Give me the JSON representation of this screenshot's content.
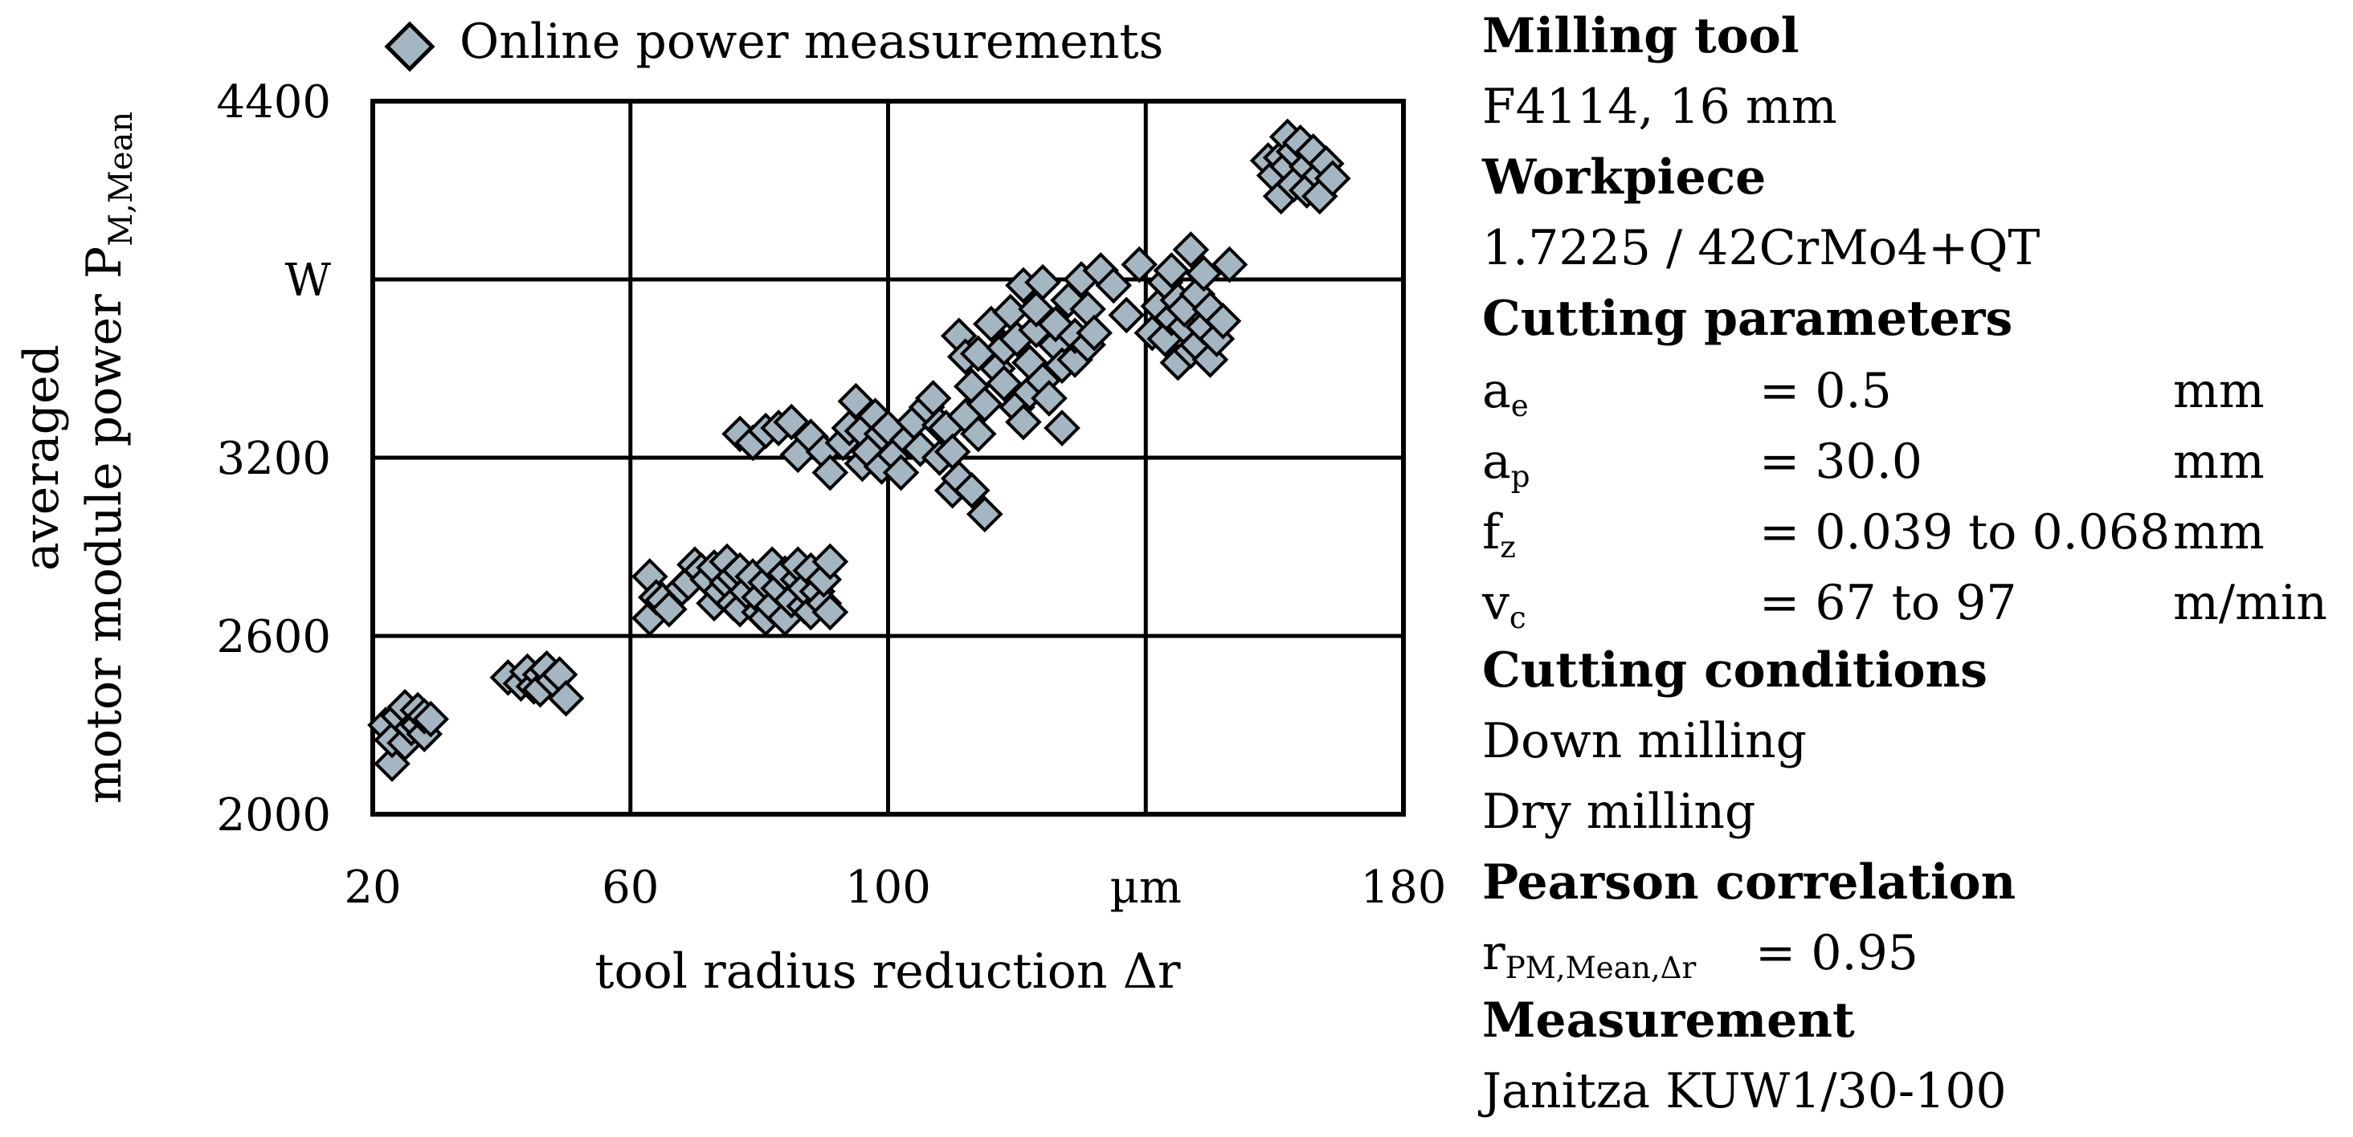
{
  "chart_data": {
    "type": "scatter",
    "series": [
      {
        "name": "Online power measurements",
        "marker": "diamond",
        "color": "#a4b6c1",
        "points": [
          [
            22,
            2300
          ],
          [
            23,
            2170
          ],
          [
            23,
            2250
          ],
          [
            24,
            2330
          ],
          [
            25,
            2240
          ],
          [
            25,
            2360
          ],
          [
            26,
            2290
          ],
          [
            27,
            2300
          ],
          [
            27,
            2350
          ],
          [
            28,
            2270
          ],
          [
            28,
            2330
          ],
          [
            29,
            2320
          ],
          [
            41,
            2460
          ],
          [
            43,
            2440
          ],
          [
            44,
            2480
          ],
          [
            45,
            2430
          ],
          [
            46,
            2470
          ],
          [
            46,
            2420
          ],
          [
            47,
            2490
          ],
          [
            48,
            2450
          ],
          [
            49,
            2470
          ],
          [
            50,
            2390
          ],
          [
            63,
            2800
          ],
          [
            63,
            2660
          ],
          [
            64,
            2730
          ],
          [
            65,
            2720
          ],
          [
            66,
            2690
          ],
          [
            68,
            2760
          ],
          [
            69,
            2780
          ],
          [
            70,
            2840
          ],
          [
            71,
            2820
          ],
          [
            72,
            2790
          ],
          [
            73,
            2710
          ],
          [
            73,
            2830
          ],
          [
            74,
            2750
          ],
          [
            75,
            2780
          ],
          [
            75,
            2850
          ],
          [
            76,
            2710
          ],
          [
            76,
            2800
          ],
          [
            77,
            2820
          ],
          [
            77,
            2690
          ],
          [
            78,
            2750
          ],
          [
            79,
            2800
          ],
          [
            80,
            2680
          ],
          [
            80,
            2730
          ],
          [
            81,
            2660
          ],
          [
            81,
            2780
          ],
          [
            82,
            2840
          ],
          [
            82,
            2700
          ],
          [
            83,
            2760
          ],
          [
            84,
            2810
          ],
          [
            84,
            2660
          ],
          [
            85,
            2720
          ],
          [
            86,
            2790
          ],
          [
            86,
            2840
          ],
          [
            87,
            2700
          ],
          [
            87,
            2760
          ],
          [
            88,
            2680
          ],
          [
            88,
            2820
          ],
          [
            89,
            2750
          ],
          [
            90,
            2710
          ],
          [
            90,
            2790
          ],
          [
            91,
            2850
          ],
          [
            91,
            2680
          ],
          [
            77,
            3280
          ],
          [
            79,
            3250
          ],
          [
            81,
            3290
          ],
          [
            83,
            3300
          ],
          [
            85,
            3320
          ],
          [
            86,
            3210
          ],
          [
            88,
            3270
          ],
          [
            90,
            3220
          ],
          [
            91,
            3150
          ],
          [
            93,
            3250
          ],
          [
            94,
            3300
          ],
          [
            95,
            3390
          ],
          [
            96,
            3290
          ],
          [
            96,
            3180
          ],
          [
            97,
            3220
          ],
          [
            98,
            3340
          ],
          [
            99,
            3170
          ],
          [
            99,
            3280
          ],
          [
            100,
            3300
          ],
          [
            101,
            3210
          ],
          [
            102,
            3150
          ],
          [
            103,
            3260
          ],
          [
            104,
            3320
          ],
          [
            105,
            3230
          ],
          [
            106,
            3370
          ],
          [
            107,
            3400
          ],
          [
            108,
            3310
          ],
          [
            108,
            3200
          ],
          [
            109,
            3300
          ],
          [
            110,
            3220
          ],
          [
            110,
            3090
          ],
          [
            111,
            3130
          ],
          [
            111,
            3610
          ],
          [
            112,
            3340
          ],
          [
            112,
            3540
          ],
          [
            113,
            3090
          ],
          [
            113,
            3440
          ],
          [
            114,
            3280
          ],
          [
            114,
            3550
          ],
          [
            115,
            3010
          ],
          [
            115,
            3380
          ],
          [
            116,
            3650
          ],
          [
            117,
            3500
          ],
          [
            118,
            3450
          ],
          [
            118,
            3570
          ],
          [
            119,
            3690
          ],
          [
            120,
            3370
          ],
          [
            120,
            3600
          ],
          [
            121,
            3320
          ],
          [
            121,
            3780
          ],
          [
            122,
            3420
          ],
          [
            122,
            3520
          ],
          [
            123,
            3630
          ],
          [
            123,
            3700
          ],
          [
            124,
            3790
          ],
          [
            124,
            3460
          ],
          [
            125,
            3400
          ],
          [
            126,
            3580
          ],
          [
            126,
            3650
          ],
          [
            127,
            3300
          ],
          [
            127,
            3510
          ],
          [
            128,
            3730
          ],
          [
            129,
            3530
          ],
          [
            129,
            3610
          ],
          [
            130,
            3800
          ],
          [
            131,
            3580
          ],
          [
            131,
            3700
          ],
          [
            132,
            3620
          ],
          [
            133,
            3830
          ],
          [
            135,
            3780
          ],
          [
            137,
            3680
          ],
          [
            139,
            3850
          ],
          [
            141,
            3620
          ],
          [
            142,
            3710
          ],
          [
            143,
            3600
          ],
          [
            143,
            3790
          ],
          [
            144,
            3670
          ],
          [
            144,
            3830
          ],
          [
            145,
            3730
          ],
          [
            145,
            3520
          ],
          [
            146,
            3640
          ],
          [
            146,
            3700
          ],
          [
            147,
            3900
          ],
          [
            147,
            3560
          ],
          [
            148,
            3580
          ],
          [
            148,
            3750
          ],
          [
            149,
            3640
          ],
          [
            149,
            3820
          ],
          [
            150,
            3700
          ],
          [
            150,
            3530
          ],
          [
            151,
            3600
          ],
          [
            152,
            3660
          ],
          [
            153,
            3850
          ],
          [
            159,
            4200
          ],
          [
            160,
            4150
          ],
          [
            161,
            4210
          ],
          [
            161,
            4080
          ],
          [
            162,
            4280
          ],
          [
            162,
            4180
          ],
          [
            163,
            4230
          ],
          [
            163,
            4120
          ],
          [
            164,
            4260
          ],
          [
            165,
            4180
          ],
          [
            165,
            4100
          ],
          [
            166,
            4230
          ],
          [
            167,
            4150
          ],
          [
            167,
            4080
          ],
          [
            168,
            4190
          ],
          [
            169,
            4140
          ]
        ]
      }
    ],
    "title": "",
    "xlabel": "tool radius reduction Δr",
    "ylabel_line1": "averaged",
    "ylabel_line2_prefix": "motor module power P",
    "ylabel_line2_sub": "M,Mean",
    "xlim": [
      20,
      180
    ],
    "ylim": [
      2000,
      4400
    ],
    "x_ticks": [
      "20",
      "60",
      "100",
      "µm",
      "180"
    ],
    "y_ticks": [
      "2000",
      "2600",
      "3200",
      "W",
      "4400"
    ],
    "x_tick_values": [
      20,
      60,
      100,
      140,
      180
    ],
    "y_tick_values": [
      2000,
      2600,
      3200,
      3800,
      4400
    ],
    "grid": true,
    "legend": "top-left, above plot",
    "legend_label": "Online power measurements"
  },
  "info": {
    "milling_tool_heading": "Milling tool",
    "milling_tool_value": "F4114, 16 mm",
    "workpiece_heading": "Workpiece",
    "workpiece_value": "1.7225 / 42CrMo4+QT",
    "cutting_parameters_heading": "Cutting parameters",
    "params": [
      {
        "sym": "a",
        "sub": "e",
        "value": "=   0.5",
        "unit": "mm"
      },
      {
        "sym": "a",
        "sub": "p",
        "value": "= 30.0",
        "unit": "mm"
      },
      {
        "sym": "f",
        "sub": "z",
        "value": "= 0.039 to 0.068",
        "unit": "mm"
      },
      {
        "sym": "v",
        "sub": "c",
        "value": "= 67 to 97",
        "unit": "m/min"
      }
    ],
    "cutting_conditions_heading": "Cutting conditions",
    "condition_1": "Down milling",
    "condition_2": "Dry milling",
    "pearson_heading": "Pearson correlation",
    "pearson_sym": "r",
    "pearson_sub": "PM,Mean,Δr",
    "pearson_value": "=   0.95",
    "measurement_heading": "Measurement",
    "measurement_value": "Janitza KUW1/30-100"
  }
}
